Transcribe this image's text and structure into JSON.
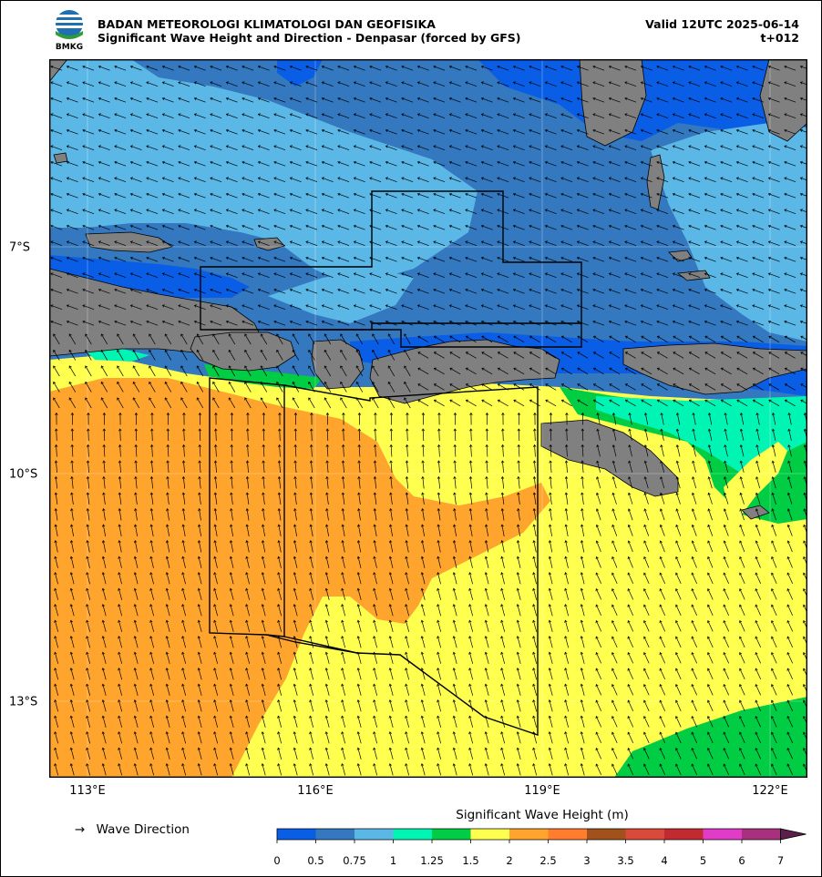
{
  "header": {
    "agency": "BADAN METEOROLOGI KLIMATOLOGI DAN GEOFISIKA",
    "subtitle": "Significant Wave Height and Direction - Denpasar (forced by GFS)",
    "valid": "Valid 12UTC 2025-06-14",
    "lead": "t+012",
    "logo_text": "BMKG"
  },
  "axes": {
    "lon_ticks": [
      "113°E",
      "116°E",
      "119°E",
      "122°E"
    ],
    "lat_ticks": [
      "7°S",
      "10°S",
      "13°S"
    ],
    "lon_range": [
      112.5,
      122.5
    ],
    "lat_range": [
      -5.0,
      -14.5
    ]
  },
  "legend": {
    "arrow_symbol": "→",
    "direction_label": "Wave Direction",
    "colorbar_title": "Significant Wave Height (m)",
    "levels": [
      "0",
      "0.5",
      "0.75",
      "1",
      "1.25",
      "1.5",
      "2",
      "2.5",
      "3",
      "3.5",
      "4",
      "5",
      "6",
      "7"
    ],
    "colors": [
      "#0a5ee6",
      "#3478bf",
      "#5bb8e6",
      "#00f5b4",
      "#00cc44",
      "#ffff50",
      "#ffa52e",
      "#ff7d2d",
      "#a0521a",
      "#d94a3a",
      "#c02a30",
      "#e03cc8",
      "#a8307e",
      "#5a1f4a"
    ]
  },
  "colors": {
    "land": "#808080",
    "sea_north_dark": "#3478bf",
    "sea_north_light": "#5bb8e6",
    "sea_shallow": "#0a5ee6",
    "south_yellow": "#ffff50",
    "south_orange": "#ffa52e",
    "green": "#00cc44",
    "aqua": "#00f5b4"
  }
}
